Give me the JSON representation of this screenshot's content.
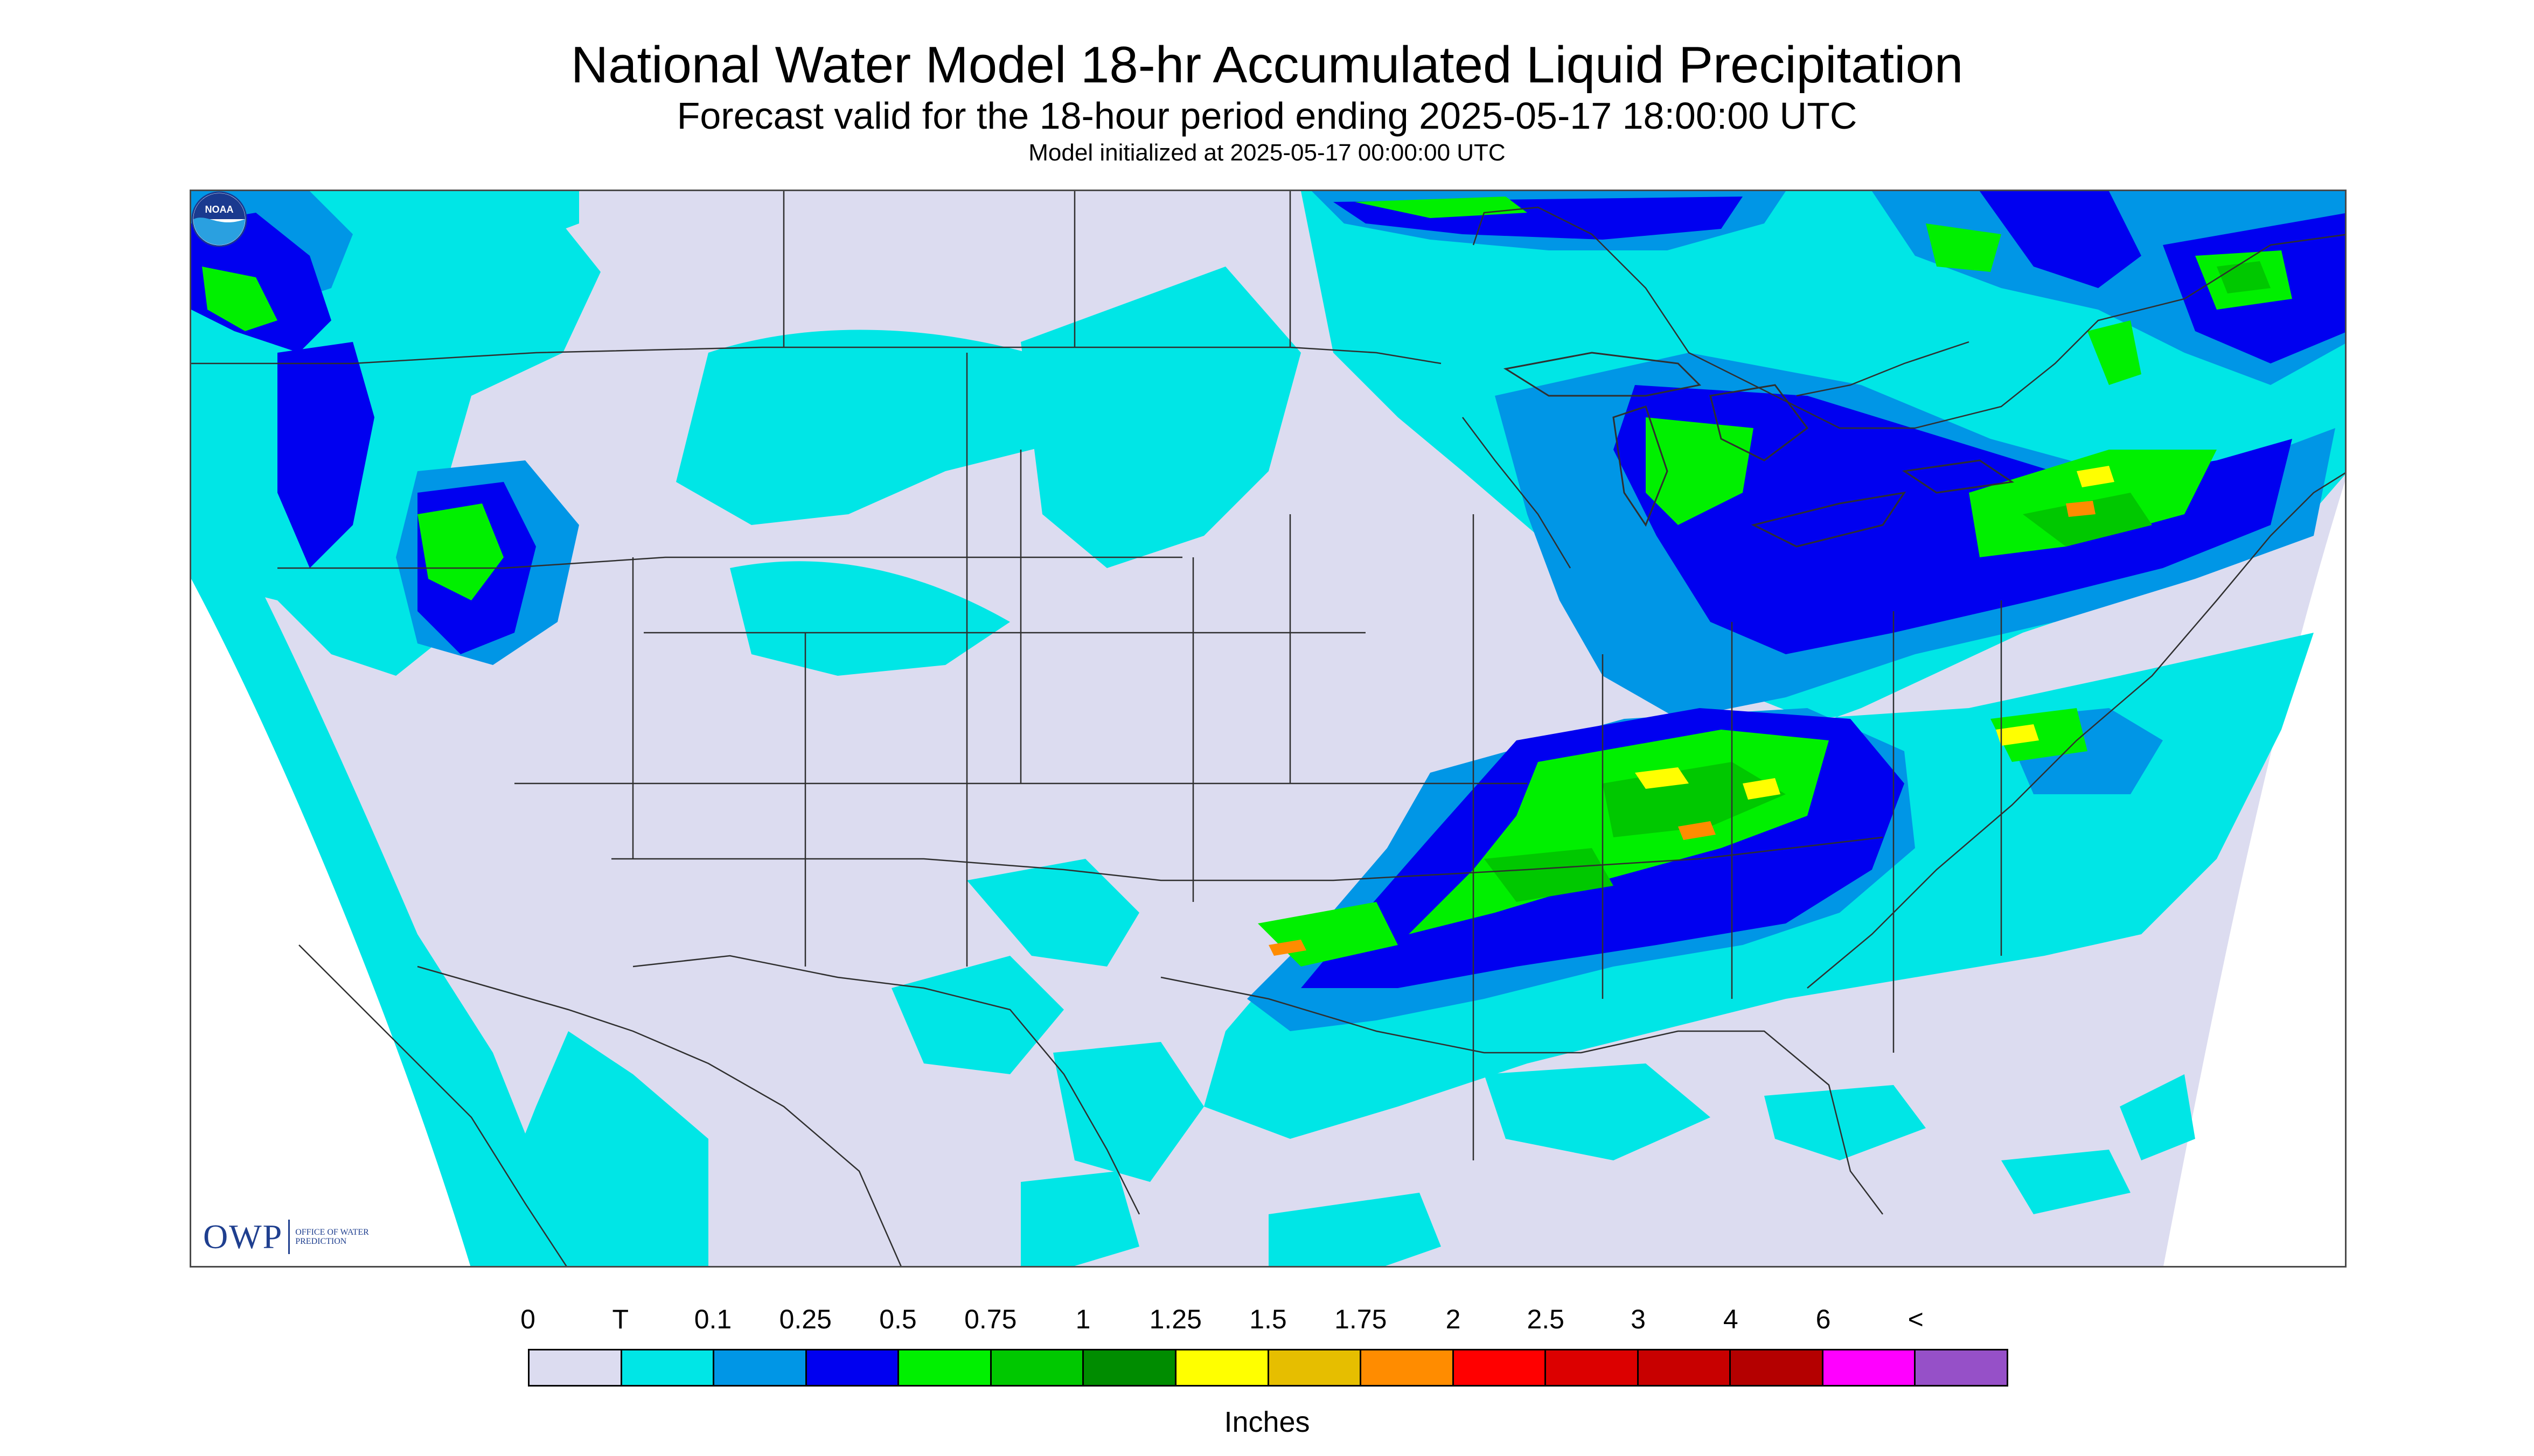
{
  "header": {
    "title": "National Water Model 18-hr Accumulated Liquid Precipitation",
    "subtitle": "Forecast valid for the 18-hour period ending 2025-05-17 18:00:00 UTC",
    "init": "Model initialized at 2025-05-17 00:00:00 UTC"
  },
  "map": {
    "background_color": "#dcdcf0",
    "logos": {
      "owp_mark": "OWP",
      "owp_text": "Office of Water Prediction",
      "noaa_text": "NOAA"
    }
  },
  "legend": {
    "labels": [
      "0",
      "T",
      "0.1",
      "0.25",
      "0.5",
      "0.75",
      "1",
      "1.25",
      "1.5",
      "1.75",
      "2",
      "2.5",
      "3",
      "4",
      "6",
      "<"
    ],
    "colors": [
      "#dcdcf0",
      "#00e6e6",
      "#0096e6",
      "#0000f0",
      "#00f000",
      "#00c800",
      "#008c00",
      "#ffff00",
      "#e6be00",
      "#ff8c00",
      "#ff0000",
      "#dc0000",
      "#c80000",
      "#b40000",
      "#ff00ff",
      "#9650c8"
    ],
    "units": "Inches"
  },
  "icons": {
    "owp": "owp-logo-icon",
    "noaa": "noaa-logo-icon"
  }
}
